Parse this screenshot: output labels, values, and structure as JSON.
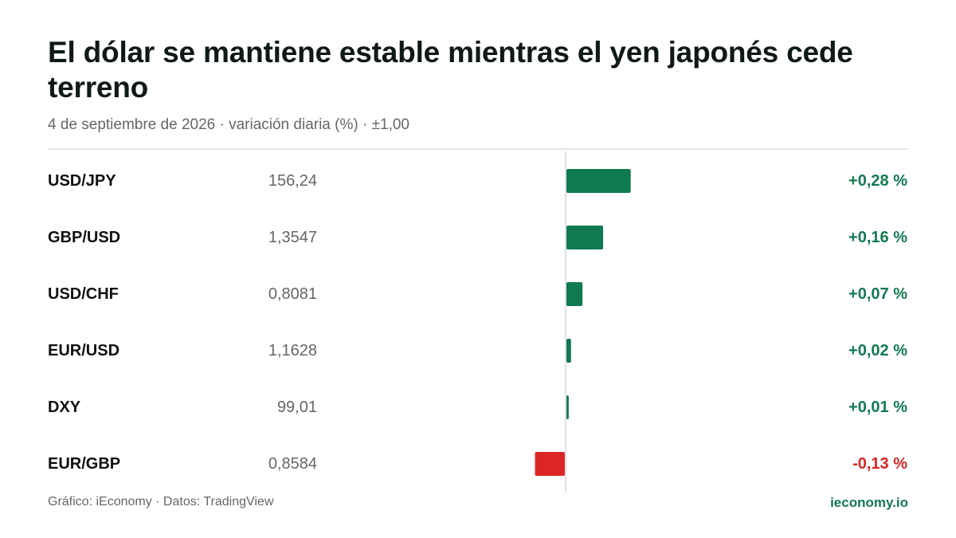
{
  "header": {
    "title": "El dólar se mantiene estable mientras el yen japonés cede terreno",
    "subtitle": "4 de septiembre de 2026 · variación diaria (%) · ±1,00"
  },
  "footer": {
    "source": "Gráfico: iEconomy · Datos: TradingView",
    "brand": "ieconomy.io"
  },
  "colors": {
    "positive": "#0f7a4f",
    "negative": "#dc2626",
    "positive_text": "#137a50",
    "negative_text": "#dc2626",
    "axis": "#d9d9d9"
  },
  "chart_data": {
    "type": "bar",
    "orientation": "horizontal",
    "title": "El dólar se mantiene estable mientras el yen japonés cede terreno",
    "subtitle": "4 de septiembre de 2026 · variación diaria (%) · ±1,00",
    "xlim": [
      -1,
      1
    ],
    "categories": [
      "USD/JPY",
      "GBP/USD",
      "USD/CHF",
      "EUR/USD",
      "DXY",
      "EUR/GBP"
    ],
    "prices": [
      "156,24",
      "1,3547",
      "0,8081",
      "1,1628",
      "99,01",
      "0,8584"
    ],
    "values": [
      0.28,
      0.16,
      0.07,
      0.02,
      0.01,
      -0.13
    ],
    "value_labels": [
      "+0,28 %",
      "+0,16 %",
      "+0,07 %",
      "+0,02 %",
      "+0,01 %",
      "-0,13 %"
    ]
  }
}
